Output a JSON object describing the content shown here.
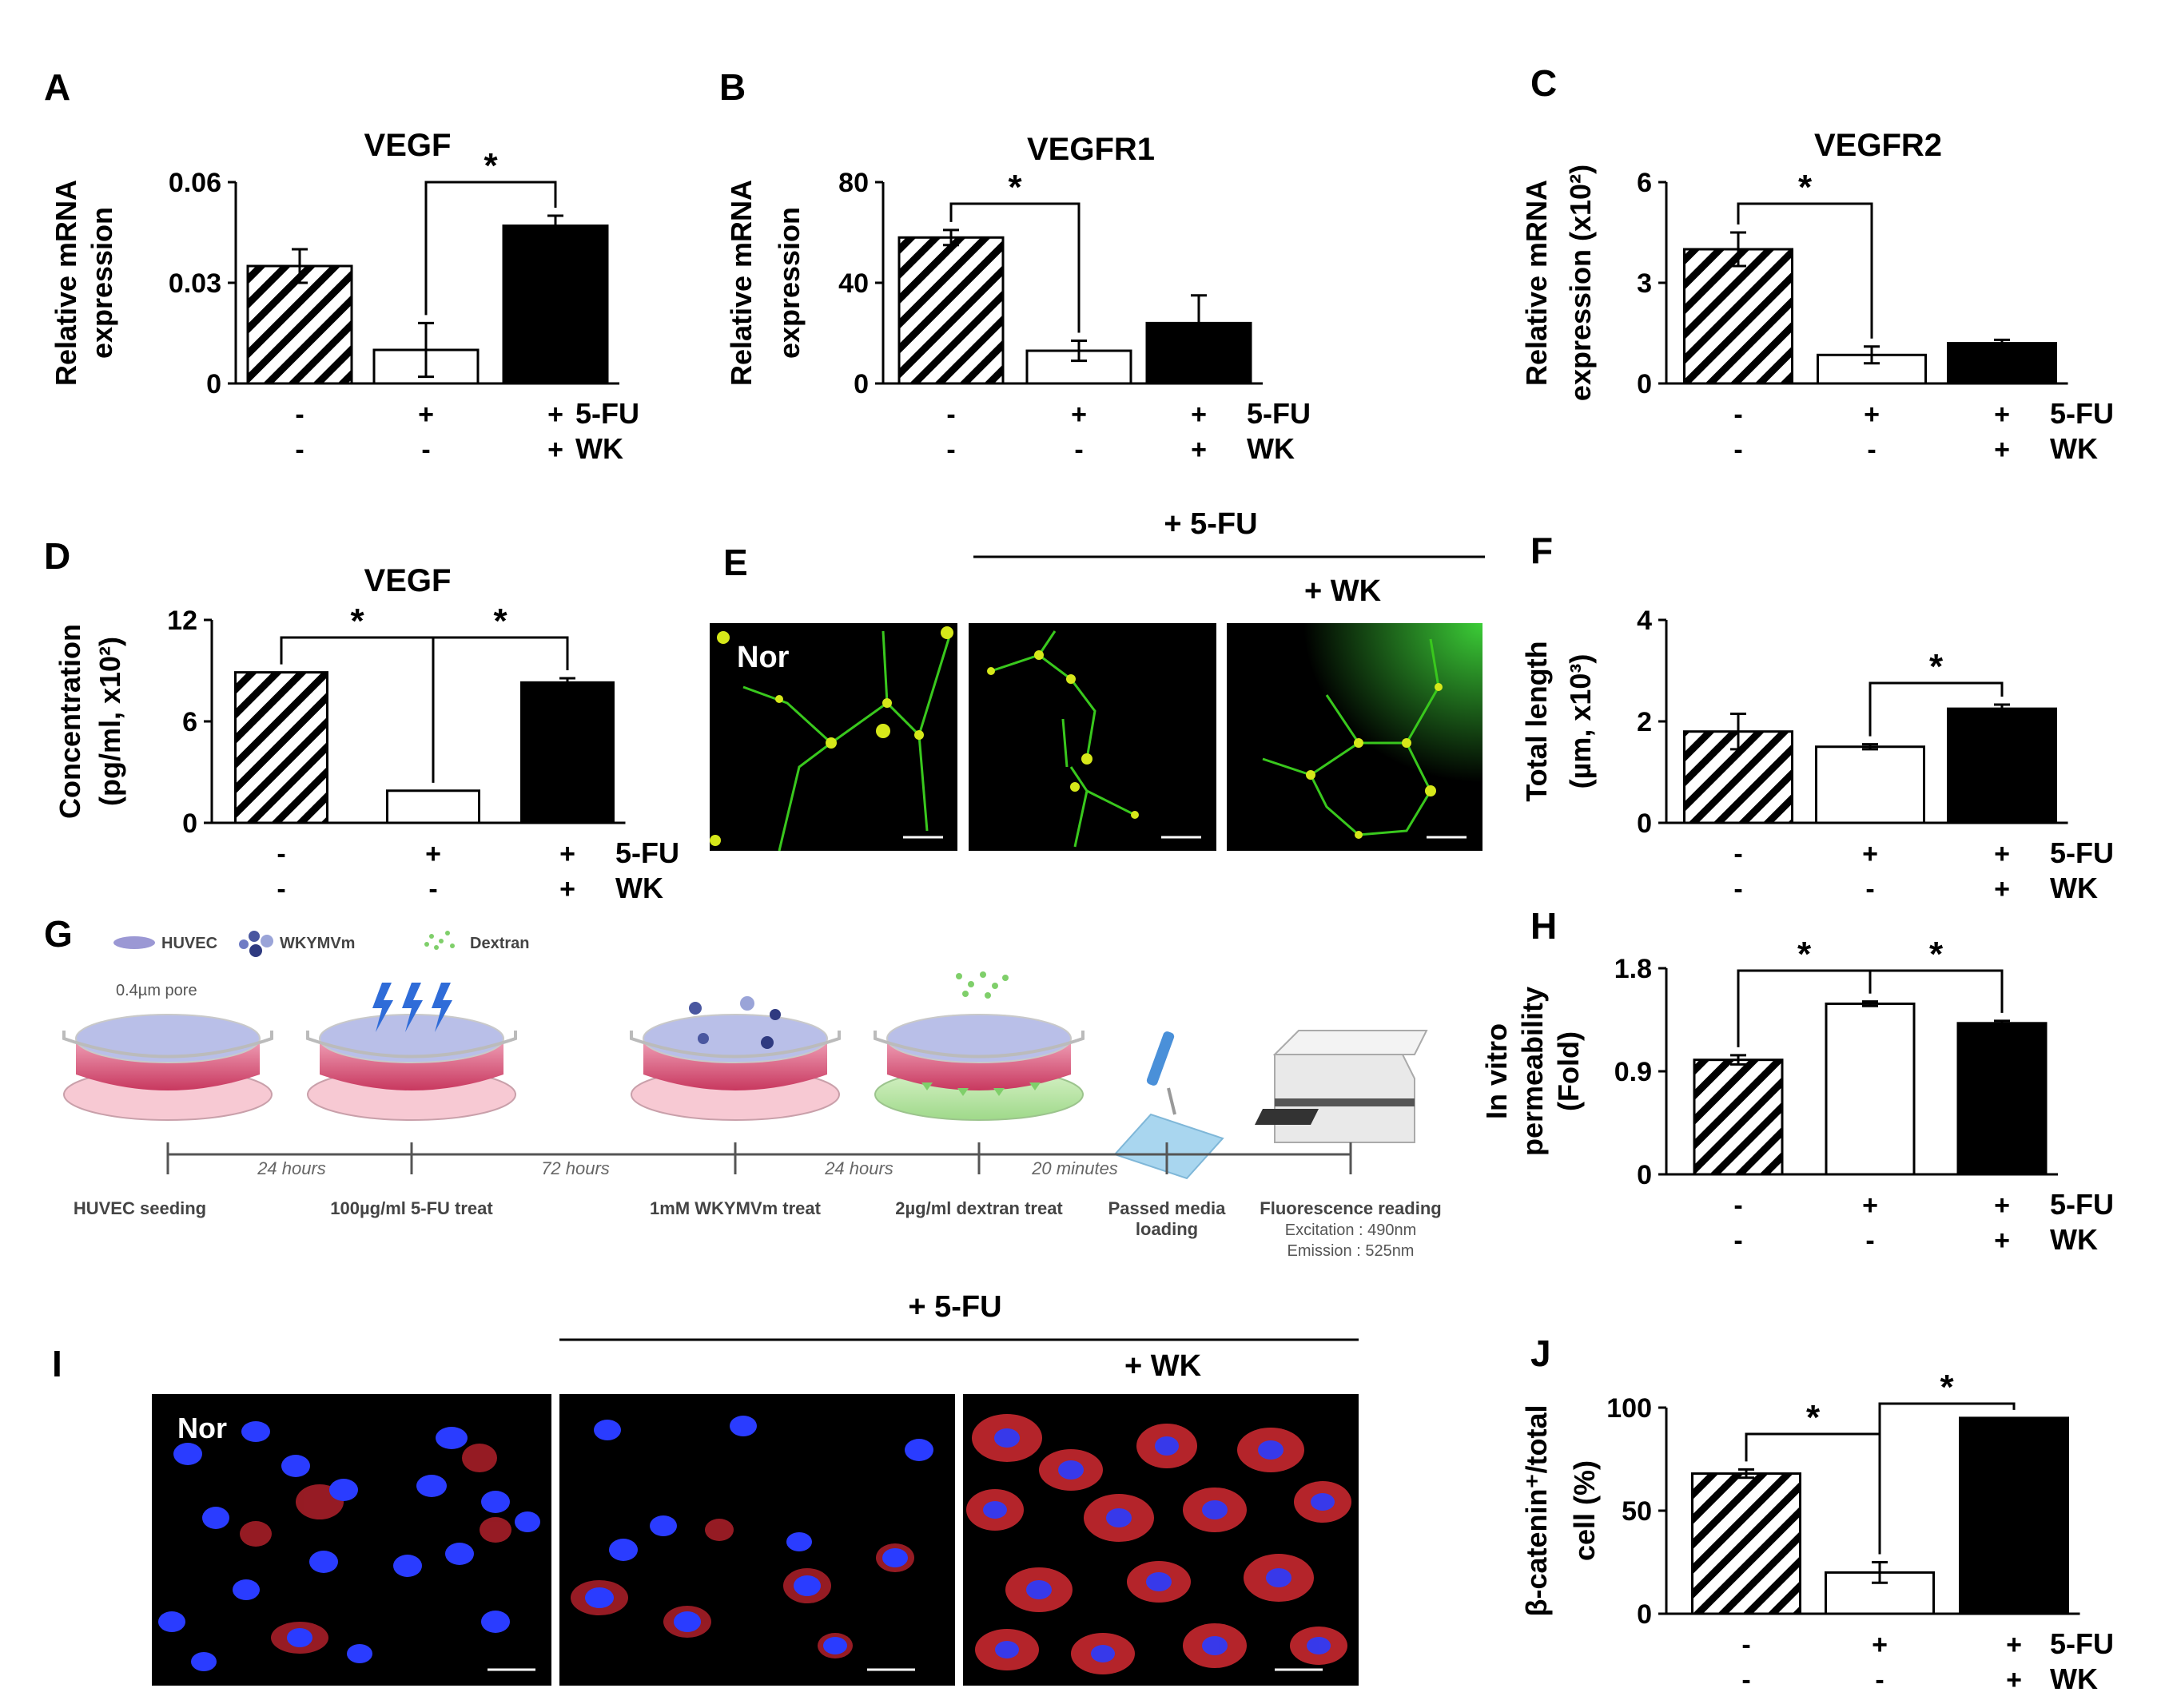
{
  "colors": {
    "bar_fill_0": "hatched",
    "bar_fill_1": "#ffffff",
    "bar_fill_2": "#000000",
    "micrograph_background": "#000000",
    "tube_stain": "#3cd21e",
    "beta_catenin_stain": "#d2282d",
    "nuclear_stain": "#2a3cff",
    "transwell_media": "#d94a74"
  },
  "chart_data": [
    {
      "panel": "A",
      "type": "bar",
      "title": "VEGF",
      "ylabel": [
        "Relative mRNA",
        "expression"
      ],
      "ylim": [
        0,
        0.06
      ],
      "yticks": [
        "0",
        "0.03",
        "0.06"
      ],
      "values": [
        0.035,
        0.01,
        0.047
      ],
      "errors": [
        0.005,
        0.008,
        0.003
      ],
      "fu_row": [
        "-",
        "+",
        "+"
      ],
      "wk_row": [
        "-",
        "-",
        "+"
      ],
      "fu_label": "5-FU",
      "wk_label": "WK",
      "significance": [
        {
          "from": 1,
          "to": 2,
          "label": "*"
        }
      ]
    },
    {
      "panel": "B",
      "type": "bar",
      "title": "VEGFR1",
      "ylabel": [
        "Relative mRNA",
        "expression"
      ],
      "ylim": [
        0,
        80
      ],
      "yticks": [
        "0",
        "40",
        "80"
      ],
      "values": [
        58,
        13,
        24
      ],
      "errors": [
        3,
        4,
        11
      ],
      "fu_row": [
        "-",
        "+",
        "+"
      ],
      "wk_row": [
        "-",
        "-",
        "+"
      ],
      "fu_label": "5-FU",
      "wk_label": "WK",
      "significance": [
        {
          "from": 0,
          "to": 1,
          "label": "*"
        }
      ]
    },
    {
      "panel": "C",
      "type": "bar",
      "title": "VEGFR2",
      "ylabel": [
        "Relative mRNA",
        "expression (x10²)"
      ],
      "ylim": [
        0,
        6
      ],
      "yticks": [
        "0",
        "3",
        "6"
      ],
      "values": [
        4.0,
        0.85,
        1.2
      ],
      "errors": [
        0.5,
        0.25,
        0.1
      ],
      "fu_row": [
        "-",
        "+",
        "+"
      ],
      "wk_row": [
        "-",
        "-",
        "+"
      ],
      "fu_label": "5-FU",
      "wk_label": "WK",
      "significance": [
        {
          "from": 0,
          "to": 1,
          "label": "*"
        }
      ]
    },
    {
      "panel": "D",
      "type": "bar",
      "title": "VEGF",
      "ylabel": [
        "Concentration",
        "(pg/ml, x10²)"
      ],
      "ylim": [
        0,
        12
      ],
      "yticks": [
        "0",
        "6",
        "12"
      ],
      "values": [
        8.9,
        1.9,
        8.3
      ],
      "errors": [
        0,
        0,
        0.25
      ],
      "fu_row": [
        "-",
        "+",
        "+"
      ],
      "wk_row": [
        "-",
        "-",
        "+"
      ],
      "fu_label": "5-FU",
      "wk_label": "WK",
      "significance": [
        {
          "from": 0,
          "to": 1,
          "label": "*"
        },
        {
          "from": 1,
          "to": 2,
          "label": "*"
        }
      ]
    },
    {
      "panel": "F",
      "type": "bar",
      "title": "",
      "ylabel": [
        "Total length",
        "(µm, x10³)"
      ],
      "ylim": [
        0,
        4
      ],
      "yticks": [
        "0",
        "2",
        "4"
      ],
      "values": [
        1.8,
        1.5,
        2.25
      ],
      "errors": [
        0.35,
        0.05,
        0.08
      ],
      "fu_row": [
        "-",
        "+",
        "+"
      ],
      "wk_row": [
        "-",
        "-",
        "+"
      ],
      "fu_label": "5-FU",
      "wk_label": "WK",
      "significance": [
        {
          "from": 1,
          "to": 2,
          "label": "*"
        }
      ]
    },
    {
      "panel": "H",
      "type": "bar",
      "title": "",
      "ylabel": [
        "In vitro",
        "permeability",
        "(Fold)"
      ],
      "ylim": [
        0,
        1.8
      ],
      "yticks": [
        "0",
        "0.9",
        "1.8"
      ],
      "values": [
        1.0,
        1.49,
        1.32
      ],
      "errors": [
        0.04,
        0.02,
        0.02
      ],
      "fu_row": [
        "-",
        "+",
        "+"
      ],
      "wk_row": [
        "-",
        "-",
        "+"
      ],
      "fu_label": "5-FU",
      "wk_label": "WK",
      "significance": [
        {
          "from": 0,
          "to": 1,
          "label": "*"
        },
        {
          "from": 1,
          "to": 2,
          "label": "*"
        }
      ]
    },
    {
      "panel": "J",
      "type": "bar",
      "title": "",
      "ylabel": [
        "β-catenin⁺/total",
        "cell (%)"
      ],
      "ylim": [
        0,
        100
      ],
      "yticks": [
        "0",
        "50",
        "100"
      ],
      "values": [
        68,
        20,
        95
      ],
      "errors": [
        2,
        5,
        0
      ],
      "fu_row": [
        "-",
        "+",
        "+"
      ],
      "wk_row": [
        "-",
        "-",
        "+"
      ],
      "fu_label": "5-FU",
      "wk_label": "WK",
      "significance": [
        {
          "from": 0,
          "to": 1,
          "label": "*"
        },
        {
          "from": 1,
          "to": 2,
          "label": "*"
        }
      ]
    }
  ],
  "panel_e": {
    "letter": "E",
    "header_fu": "+ 5-FU",
    "header_wk": "+ WK",
    "image_label_nor": "Nor"
  },
  "panel_g": {
    "letter": "G",
    "legend": [
      "HUVEC",
      "WKYMVm",
      "Dextran"
    ],
    "pore_label": "0.4µm pore",
    "intervals": [
      "24 hours",
      "72 hours",
      "24 hours",
      "20 minutes"
    ],
    "steps": [
      [
        "HUVEC seeding"
      ],
      [
        "100µg/ml 5-FU treat"
      ],
      [
        "1mM WKYMVm treat"
      ],
      [
        "2µg/ml dextran treat"
      ],
      [
        "Passed media",
        "loading"
      ],
      [
        "Fluorescence reading",
        "Excitation : 490nm",
        "Emission : 525nm"
      ]
    ]
  },
  "panel_i": {
    "letter": "I",
    "header_fu": "+ 5-FU",
    "header_wk": "+ WK",
    "image_label_nor": "Nor"
  }
}
